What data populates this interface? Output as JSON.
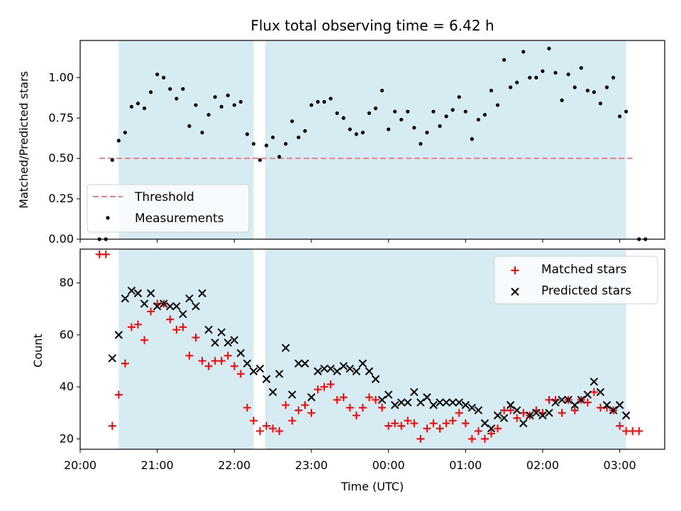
{
  "title": "Flux total observing time = 6.42 h",
  "colors": {
    "band": "#add8e6",
    "threshold": "#f08080",
    "measure": "#000000",
    "matched": "#ff0000",
    "predicted": "#000000"
  },
  "chart_data": [
    {
      "type": "scatter",
      "ylabel": "Matched/Predicted stars",
      "ylim": [
        0,
        1.23
      ],
      "yticks": [
        "0.00",
        "0.25",
        "0.50",
        "0.75",
        "1.00"
      ],
      "xlim": [
        "20:00",
        "03:35"
      ],
      "observing_windows": [
        [
          "20:30",
          "22:15"
        ],
        [
          "22:24",
          "03:05"
        ]
      ],
      "threshold": {
        "name": "Threshold",
        "value": 0.5,
        "x": [
          "20:15",
          "03:10"
        ]
      },
      "legend": {
        "placement": "lower-left",
        "entries": [
          "Threshold",
          "Measurements"
        ]
      },
      "series": [
        {
          "name": "Measurements",
          "points": [
            [
              "20:15",
              0.0
            ],
            [
              "20:20",
              0.0
            ],
            [
              "20:25",
              0.49
            ],
            [
              "20:30",
              0.61
            ],
            [
              "20:35",
              0.66
            ],
            [
              "20:40",
              0.82
            ],
            [
              "20:45",
              0.84
            ],
            [
              "20:50",
              0.81
            ],
            [
              "20:55",
              0.91
            ],
            [
              "21:00",
              1.02
            ],
            [
              "21:05",
              1.0
            ],
            [
              "21:10",
              0.93
            ],
            [
              "21:15",
              0.87
            ],
            [
              "21:20",
              0.93
            ],
            [
              "21:25",
              0.7
            ],
            [
              "21:30",
              0.83
            ],
            [
              "21:35",
              0.66
            ],
            [
              "21:40",
              0.77
            ],
            [
              "21:45",
              0.88
            ],
            [
              "21:50",
              0.82
            ],
            [
              "21:55",
              0.89
            ],
            [
              "22:00",
              0.83
            ],
            [
              "22:05",
              0.85
            ],
            [
              "22:10",
              0.65
            ],
            [
              "22:15",
              0.59
            ],
            [
              "22:20",
              0.49
            ],
            [
              "22:25",
              0.58
            ],
            [
              "22:30",
              0.63
            ],
            [
              "22:35",
              0.51
            ],
            [
              "22:40",
              0.59
            ],
            [
              "22:45",
              0.73
            ],
            [
              "22:50",
              0.63
            ],
            [
              "22:55",
              0.67
            ],
            [
              "23:00",
              0.83
            ],
            [
              "23:05",
              0.85
            ],
            [
              "23:10",
              0.85
            ],
            [
              "23:15",
              0.87
            ],
            [
              "23:20",
              0.78
            ],
            [
              "23:25",
              0.75
            ],
            [
              "23:30",
              0.68
            ],
            [
              "23:35",
              0.65
            ],
            [
              "23:40",
              0.66
            ],
            [
              "23:45",
              0.78
            ],
            [
              "23:50",
              0.81
            ],
            [
              "23:55",
              0.92
            ],
            [
              "00:00",
              0.68
            ],
            [
              "00:05",
              0.79
            ],
            [
              "00:10",
              0.74
            ],
            [
              "00:15",
              0.79
            ],
            [
              "00:20",
              0.69
            ],
            [
              "00:25",
              0.59
            ],
            [
              "00:30",
              0.66
            ],
            [
              "00:35",
              0.79
            ],
            [
              "00:40",
              0.7
            ],
            [
              "00:45",
              0.76
            ],
            [
              "00:50",
              0.8
            ],
            [
              "00:55",
              0.88
            ],
            [
              "01:00",
              0.79
            ],
            [
              "01:05",
              0.62
            ],
            [
              "01:10",
              0.74
            ],
            [
              "01:15",
              0.77
            ],
            [
              "01:20",
              0.92
            ],
            [
              "01:25",
              0.83
            ],
            [
              "01:30",
              1.11
            ],
            [
              "01:35",
              0.94
            ],
            [
              "01:40",
              0.97
            ],
            [
              "01:45",
              1.16
            ],
            [
              "01:50",
              1.0
            ],
            [
              "01:55",
              1.0
            ],
            [
              "02:00",
              1.04
            ],
            [
              "02:05",
              1.18
            ],
            [
              "02:10",
              1.03
            ],
            [
              "02:15",
              0.86
            ],
            [
              "02:20",
              1.02
            ],
            [
              "02:25",
              0.94
            ],
            [
              "02:30",
              1.06
            ],
            [
              "02:35",
              0.92
            ],
            [
              "02:40",
              0.91
            ],
            [
              "02:45",
              0.84
            ],
            [
              "02:50",
              0.94
            ],
            [
              "02:55",
              1.0
            ],
            [
              "03:00",
              0.76
            ],
            [
              "03:05",
              0.79
            ],
            [
              "03:15",
              0.0
            ],
            [
              "03:20",
              0.0
            ]
          ]
        }
      ]
    },
    {
      "type": "scatter",
      "xlabel": "Time (UTC)",
      "ylabel": "Count",
      "ylim": [
        16,
        93
      ],
      "yticks": [
        "20",
        "40",
        "60",
        "80"
      ],
      "xticks": [
        "20:00",
        "21:00",
        "22:00",
        "23:00",
        "00:00",
        "01:00",
        "02:00",
        "03:00"
      ],
      "xlim": [
        "20:00",
        "03:35"
      ],
      "observing_windows": [
        [
          "20:30",
          "22:15"
        ],
        [
          "22:24",
          "03:05"
        ]
      ],
      "legend": {
        "placement": "upper-right",
        "entries": [
          "Matched stars",
          "Predicted stars"
        ]
      },
      "series": [
        {
          "name": "Matched stars",
          "marker": "+",
          "points": [
            [
              "20:15",
              91
            ],
            [
              "20:20",
              91
            ],
            [
              "20:25",
              25
            ],
            [
              "20:30",
              37
            ],
            [
              "20:35",
              49
            ],
            [
              "20:40",
              63
            ],
            [
              "20:45",
              64
            ],
            [
              "20:50",
              58
            ],
            [
              "20:55",
              69
            ],
            [
              "21:00",
              72
            ],
            [
              "21:05",
              72
            ],
            [
              "21:10",
              66
            ],
            [
              "21:15",
              62
            ],
            [
              "21:20",
              63
            ],
            [
              "21:25",
              52
            ],
            [
              "21:30",
              59
            ],
            [
              "21:35",
              50
            ],
            [
              "21:40",
              48
            ],
            [
              "21:45",
              50
            ],
            [
              "21:50",
              50
            ],
            [
              "21:55",
              52
            ],
            [
              "22:00",
              48
            ],
            [
              "22:05",
              45
            ],
            [
              "22:10",
              32
            ],
            [
              "22:15",
              27
            ],
            [
              "22:20",
              23
            ],
            [
              "22:25",
              25
            ],
            [
              "22:30",
              24
            ],
            [
              "22:35",
              23
            ],
            [
              "22:40",
              33
            ],
            [
              "22:45",
              27
            ],
            [
              "22:50",
              31
            ],
            [
              "22:55",
              33
            ],
            [
              "23:00",
              30
            ],
            [
              "23:05",
              39
            ],
            [
              "23:10",
              40
            ],
            [
              "23:15",
              41
            ],
            [
              "23:20",
              35
            ],
            [
              "23:25",
              36
            ],
            [
              "23:30",
              32
            ],
            [
              "23:35",
              29
            ],
            [
              "23:40",
              32
            ],
            [
              "23:45",
              36
            ],
            [
              "23:50",
              35
            ],
            [
              "23:55",
              32
            ],
            [
              "00:00",
              25
            ],
            [
              "00:05",
              26
            ],
            [
              "00:10",
              25
            ],
            [
              "00:15",
              27
            ],
            [
              "00:20",
              26
            ],
            [
              "00:25",
              20
            ],
            [
              "00:30",
              24
            ],
            [
              "00:35",
              26
            ],
            [
              "00:40",
              24
            ],
            [
              "00:45",
              26
            ],
            [
              "00:50",
              27
            ],
            [
              "00:55",
              30
            ],
            [
              "01:00",
              26
            ],
            [
              "01:05",
              20
            ],
            [
              "01:10",
              23
            ],
            [
              "01:15",
              20
            ],
            [
              "01:20",
              22
            ],
            [
              "01:25",
              24
            ],
            [
              "01:30",
              31
            ],
            [
              "01:35",
              31
            ],
            [
              "01:40",
              28
            ],
            [
              "01:45",
              30
            ],
            [
              "01:50",
              29
            ],
            [
              "01:55",
              31
            ],
            [
              "02:00",
              30
            ],
            [
              "02:05",
              35
            ],
            [
              "02:10",
              35
            ],
            [
              "02:15",
              30
            ],
            [
              "02:20",
              35
            ],
            [
              "02:25",
              31
            ],
            [
              "02:30",
              35
            ],
            [
              "02:35",
              34
            ],
            [
              "02:40",
              38
            ],
            [
              "02:45",
              32
            ],
            [
              "02:50",
              32
            ],
            [
              "02:55",
              31
            ],
            [
              "03:00",
              25
            ],
            [
              "03:05",
              23
            ],
            [
              "03:10",
              23
            ],
            [
              "03:15",
              23
            ]
          ]
        },
        {
          "name": "Predicted stars",
          "marker": "x",
          "points": [
            [
              "20:25",
              51
            ],
            [
              "20:30",
              60
            ],
            [
              "20:35",
              74
            ],
            [
              "20:40",
              77
            ],
            [
              "20:45",
              76
            ],
            [
              "20:50",
              72
            ],
            [
              "20:55",
              76
            ],
            [
              "21:00",
              71
            ],
            [
              "21:05",
              72
            ],
            [
              "21:10",
              71
            ],
            [
              "21:15",
              71
            ],
            [
              "21:20",
              68
            ],
            [
              "21:25",
              74
            ],
            [
              "21:30",
              71
            ],
            [
              "21:35",
              76
            ],
            [
              "21:40",
              62
            ],
            [
              "21:45",
              57
            ],
            [
              "21:50",
              61
            ],
            [
              "21:55",
              57
            ],
            [
              "22:00",
              58
            ],
            [
              "22:05",
              53
            ],
            [
              "22:10",
              49
            ],
            [
              "22:15",
              46
            ],
            [
              "22:20",
              47
            ],
            [
              "22:25",
              43
            ],
            [
              "22:30",
              38
            ],
            [
              "22:35",
              45
            ],
            [
              "22:40",
              55
            ],
            [
              "22:45",
              37
            ],
            [
              "22:50",
              49
            ],
            [
              "22:55",
              49
            ],
            [
              "23:00",
              36
            ],
            [
              "23:05",
              46
            ],
            [
              "23:10",
              47
            ],
            [
              "23:15",
              47
            ],
            [
              "23:20",
              46
            ],
            [
              "23:25",
              48
            ],
            [
              "23:30",
              47
            ],
            [
              "23:35",
              46
            ],
            [
              "23:40",
              49
            ],
            [
              "23:45",
              46
            ],
            [
              "23:50",
              43
            ],
            [
              "23:55",
              35
            ],
            [
              "00:00",
              37
            ],
            [
              "00:05",
              33
            ],
            [
              "00:10",
              34
            ],
            [
              "00:15",
              34
            ],
            [
              "00:20",
              38
            ],
            [
              "00:25",
              34
            ],
            [
              "00:30",
              36
            ],
            [
              "00:35",
              33
            ],
            [
              "00:40",
              34
            ],
            [
              "00:45",
              34
            ],
            [
              "00:50",
              34
            ],
            [
              "00:55",
              34
            ],
            [
              "01:00",
              33
            ],
            [
              "01:05",
              32
            ],
            [
              "01:10",
              31
            ],
            [
              "01:15",
              26
            ],
            [
              "01:20",
              24
            ],
            [
              "01:25",
              29
            ],
            [
              "01:30",
              28
            ],
            [
              "01:35",
              33
            ],
            [
              "01:40",
              31
            ],
            [
              "01:45",
              26
            ],
            [
              "01:50",
              29
            ],
            [
              "01:55",
              30
            ],
            [
              "02:00",
              29
            ],
            [
              "02:05",
              30
            ],
            [
              "02:10",
              34
            ],
            [
              "02:15",
              35
            ],
            [
              "02:20",
              35
            ],
            [
              "02:25",
              33
            ],
            [
              "02:30",
              35
            ],
            [
              "02:35",
              37
            ],
            [
              "02:40",
              42
            ],
            [
              "02:45",
              38
            ],
            [
              "02:50",
              33
            ],
            [
              "02:55",
              31
            ],
            [
              "03:00",
              33
            ],
            [
              "03:05",
              29
            ]
          ]
        }
      ]
    }
  ]
}
